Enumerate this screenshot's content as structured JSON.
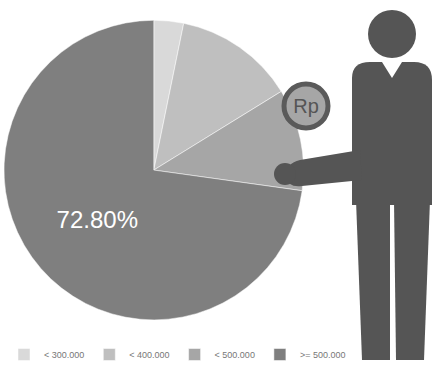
{
  "chart_data": {
    "type": "pie",
    "categories": [
      "< 300.000",
      "< 400.000",
      "< 500.000",
      ">= 500.000"
    ],
    "values": [
      3.2,
      13.0,
      11.0,
      72.8
    ],
    "value_labels": [
      null,
      null,
      null,
      "72.80%"
    ],
    "colors": [
      "#d9d9d9",
      "#bfbfbf",
      "#a6a6a6",
      "#7f7f7f"
    ],
    "data_labels": true,
    "legend": "bottom",
    "annotations": [
      "Rp"
    ]
  }
}
